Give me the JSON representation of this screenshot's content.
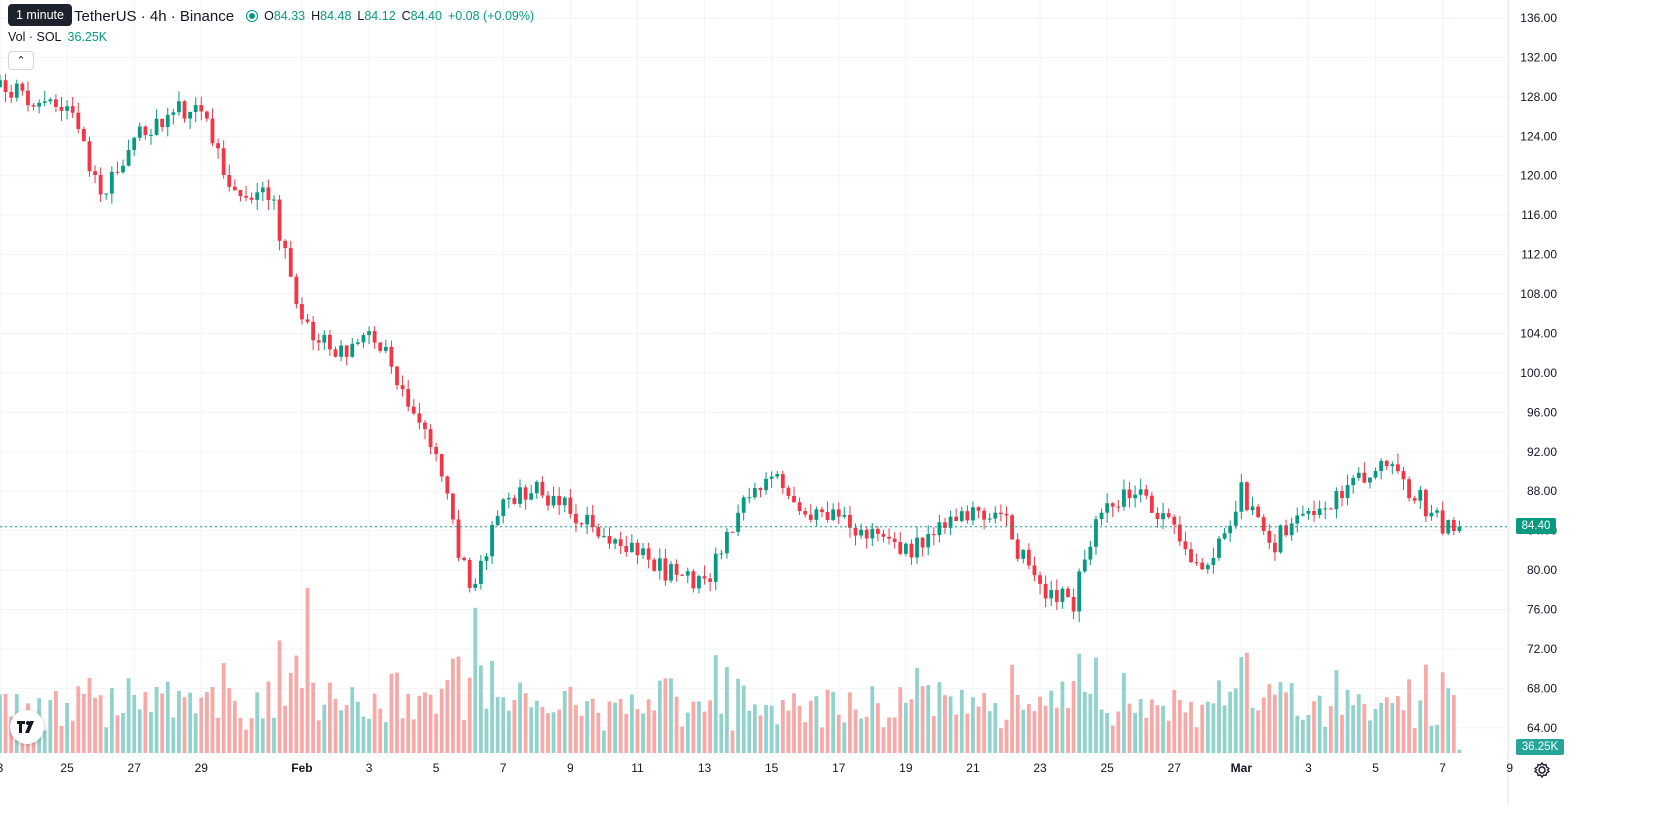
{
  "legend": {
    "tooltip": "1 minute",
    "symbol": "TetherUS · 4h · Binance",
    "open_label": "O",
    "open": "84.33",
    "high_label": "H",
    "high": "84.48",
    "low_label": "L",
    "low": "84.12",
    "close_label": "C",
    "close": "84.40",
    "change": "+0.08 (+0.09%)"
  },
  "volume_legend": {
    "label": "Vol · SOL",
    "value": "36.25K"
  },
  "price_scale": {
    "ticks": [
      "136.00",
      "132.00",
      "128.00",
      "124.00",
      "120.00",
      "116.00",
      "112.00",
      "108.00",
      "104.00",
      "100.00",
      "96.00",
      "92.00",
      "88.00",
      "84.00",
      "80.00",
      "76.00",
      "72.00",
      "68.00",
      "64.00"
    ],
    "current_price": "84.40",
    "current_volume": "36.25K"
  },
  "time_scale": {
    "ticks": [
      "3",
      "25",
      "27",
      "29",
      "Feb",
      "3",
      "5",
      "7",
      "9",
      "11",
      "13",
      "15",
      "17",
      "19",
      "21",
      "23",
      "25",
      "27",
      "Mar",
      "3",
      "5",
      "7",
      "9"
    ]
  },
  "colors": {
    "up": "#089981",
    "down": "#f23645",
    "vol_up": "#92d2cc",
    "vol_down": "#f7a9a7",
    "grid": "#f0f3fa"
  },
  "icons": {
    "logo": "tradingview-logo-icon",
    "settings": "settings-gear-icon",
    "collapse": "chevron-up-icon"
  },
  "chart_data": {
    "type": "candlestick",
    "title": "TetherUS · 4h · Binance",
    "xlabel": "",
    "ylabel": "",
    "ylim": [
      62,
      138
    ],
    "x_range": [
      "Jan 23",
      "Mar 9"
    ],
    "interval": "4h",
    "grid": true,
    "anchors": [
      [
        "Jan 23",
        129.0
      ],
      [
        "Jan 25",
        127.0
      ],
      [
        "Jan 26",
        118.0
      ],
      [
        "Jan 27",
        123.5
      ],
      [
        "Jan 28",
        126.5
      ],
      [
        "Jan 29",
        127.5
      ],
      [
        "Jan 30",
        118.0
      ],
      [
        "Jan 31",
        118.5
      ],
      [
        "Feb 1",
        106.0
      ],
      [
        "Feb 2",
        101.0
      ],
      [
        "Feb 3",
        105.0
      ],
      [
        "Feb 4",
        98.0
      ],
      [
        "Feb 5",
        91.0
      ],
      [
        "Feb 6",
        78.0
      ],
      [
        "Feb 7",
        87.0
      ],
      [
        "Feb 8",
        88.0
      ],
      [
        "Feb 9",
        86.0
      ],
      [
        "Feb 10",
        84.0
      ],
      [
        "Feb 11",
        82.0
      ],
      [
        "Feb 12",
        79.5
      ],
      [
        "Feb 13",
        78.0
      ],
      [
        "Feb 14",
        86.0
      ],
      [
        "Feb 15",
        89.5
      ],
      [
        "Feb 16",
        85.0
      ],
      [
        "Feb 17",
        85.5
      ],
      [
        "Feb 18",
        83.5
      ],
      [
        "Feb 19",
        81.5
      ],
      [
        "Feb 20",
        84.0
      ],
      [
        "Feb 21",
        85.5
      ],
      [
        "Feb 22",
        84.5
      ],
      [
        "Feb 23",
        78.0
      ],
      [
        "Feb 24",
        77.0
      ],
      [
        "Feb 25",
        87.5
      ],
      [
        "Feb 26",
        87.0
      ],
      [
        "Feb 27",
        84.0
      ],
      [
        "Feb 28",
        80.0
      ],
      [
        "Mar 1",
        88.0
      ],
      [
        "Mar 2",
        83.0
      ],
      [
        "Mar 3",
        86.0
      ],
      [
        "Mar 4",
        88.0
      ],
      [
        "Mar 5",
        91.0
      ],
      [
        "Mar 6",
        88.5
      ],
      [
        "Mar 7",
        84.4
      ]
    ],
    "last_candle": {
      "open": 84.33,
      "high": 84.48,
      "low": 84.12,
      "close": 84.4,
      "volume": "36.25K"
    },
    "volume_peaks": [
      [
        "Feb 1",
        "highest"
      ],
      [
        "Feb 6",
        "high"
      ]
    ]
  }
}
